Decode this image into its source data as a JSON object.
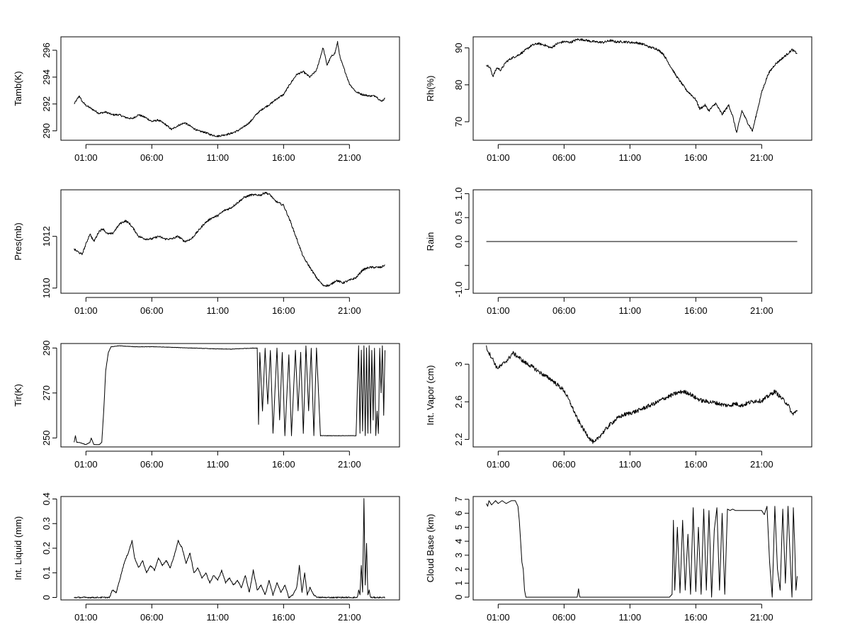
{
  "x_ticks": [
    "01:00",
    "06:00",
    "11:00",
    "16:00",
    "21:00"
  ],
  "chart_data": [
    {
      "type": "line",
      "ylabel": "Tamb(K)",
      "y_ticks": [
        290,
        292,
        294,
        296
      ],
      "ylim": [
        289.3,
        297.0
      ],
      "x_range_hours": [
        0.1,
        23.7
      ],
      "series": [
        {
          "x": [
            0.1,
            0.3,
            0.5,
            0.7,
            1.0,
            1.5,
            2.0,
            2.5,
            3.0,
            3.5,
            4.0,
            4.5,
            5.0,
            5.5,
            6.0,
            6.5,
            7.0,
            7.5,
            8.0,
            8.5,
            9.0,
            9.5,
            10.0,
            10.5,
            11.0,
            11.5,
            12.0,
            12.5,
            13.0,
            13.5,
            14.0,
            14.5,
            15.0,
            15.5,
            16.0,
            16.5,
            17.0,
            17.5,
            18.0,
            18.5,
            19.0,
            19.3,
            19.6,
            19.9,
            20.1,
            20.3,
            20.6,
            21.0,
            21.5,
            22.0,
            22.5,
            23.0,
            23.4,
            23.7
          ],
          "y": [
            292.0,
            292.3,
            292.6,
            292.2,
            291.9,
            291.6,
            291.3,
            291.4,
            291.2,
            291.2,
            291.0,
            290.9,
            291.2,
            291.0,
            290.7,
            290.8,
            290.5,
            290.1,
            290.4,
            290.6,
            290.3,
            290.0,
            289.9,
            289.7,
            289.6,
            289.7,
            289.8,
            290.0,
            290.3,
            290.7,
            291.3,
            291.7,
            292.0,
            292.4,
            292.7,
            293.5,
            294.2,
            294.4,
            294.0,
            294.5,
            296.2,
            294.9,
            295.5,
            295.8,
            296.6,
            295.4,
            294.6,
            293.5,
            292.9,
            292.7,
            292.6,
            292.6,
            292.2,
            292.4
          ]
        }
      ]
    },
    {
      "type": "line",
      "ylabel": "Rh(%)",
      "y_ticks": [
        70,
        80,
        90
      ],
      "ylim": [
        65.0,
        93.0
      ],
      "x_range_hours": [
        0.1,
        23.7
      ],
      "series": [
        {
          "x": [
            0.1,
            0.4,
            0.6,
            0.9,
            1.2,
            1.6,
            2.0,
            2.5,
            3.0,
            3.5,
            4.0,
            4.5,
            5.0,
            5.5,
            6.0,
            6.5,
            7.0,
            7.5,
            8.0,
            8.5,
            9.0,
            9.5,
            10.0,
            10.5,
            11.0,
            11.5,
            12.0,
            12.5,
            13.0,
            13.5,
            14.0,
            14.5,
            15.0,
            15.3,
            15.6,
            16.0,
            16.3,
            16.7,
            17.0,
            17.5,
            18.0,
            18.5,
            18.8,
            19.1,
            19.5,
            19.9,
            20.3,
            20.6,
            21.0,
            21.5,
            22.0,
            22.5,
            23.0,
            23.3,
            23.7
          ],
          "y": [
            85.5,
            84.5,
            82.3,
            84.6,
            84.0,
            86.2,
            87.2,
            88.0,
            89.2,
            90.6,
            91.2,
            90.8,
            90.0,
            91.2,
            91.7,
            91.5,
            92.3,
            92.2,
            91.8,
            91.6,
            91.5,
            92.0,
            91.6,
            91.7,
            91.5,
            91.4,
            91.0,
            90.2,
            89.8,
            88.5,
            85.5,
            82.5,
            80.0,
            78.5,
            77.5,
            76.0,
            73.5,
            74.5,
            73.0,
            75.0,
            72.0,
            74.5,
            71.5,
            67.0,
            73.0,
            70.0,
            67.5,
            72.0,
            78.0,
            83.0,
            85.5,
            87.0,
            88.5,
            89.5,
            88.5
          ]
        }
      ]
    },
    {
      "type": "line",
      "ylabel": "Pres(mb)",
      "y_ticks": [
        1010,
        1012
      ],
      "ylim": [
        1009.8,
        1013.8
      ],
      "x_range_hours": [
        0.1,
        23.7
      ],
      "series": [
        {
          "x": [
            0.1,
            0.4,
            0.7,
            1.0,
            1.3,
            1.6,
            2.0,
            2.3,
            2.6,
            3.0,
            3.3,
            3.6,
            4.0,
            4.3,
            4.6,
            5.0,
            5.5,
            6.0,
            6.5,
            7.0,
            7.5,
            8.0,
            8.5,
            9.0,
            9.5,
            10.0,
            10.5,
            11.0,
            11.5,
            12.0,
            12.5,
            13.0,
            13.5,
            14.0,
            14.3,
            14.6,
            15.0,
            15.3,
            15.6,
            16.0,
            16.5,
            17.0,
            17.5,
            18.0,
            18.5,
            19.0,
            19.5,
            20.0,
            20.5,
            21.0,
            21.5,
            22.0,
            22.5,
            23.0,
            23.4,
            23.7
          ],
          "y": [
            1011.5,
            1011.4,
            1011.3,
            1011.7,
            1012.1,
            1011.8,
            1012.2,
            1012.3,
            1012.1,
            1012.1,
            1012.3,
            1012.5,
            1012.6,
            1012.5,
            1012.3,
            1012.0,
            1011.9,
            1011.9,
            1012.0,
            1011.9,
            1011.9,
            1012.0,
            1011.8,
            1011.9,
            1012.2,
            1012.5,
            1012.7,
            1012.8,
            1013.0,
            1013.1,
            1013.3,
            1013.5,
            1013.6,
            1013.6,
            1013.6,
            1013.7,
            1013.6,
            1013.4,
            1013.3,
            1013.2,
            1012.6,
            1011.9,
            1011.2,
            1010.8,
            1010.4,
            1010.1,
            1010.1,
            1010.3,
            1010.2,
            1010.3,
            1010.4,
            1010.7,
            1010.8,
            1010.8,
            1010.8,
            1010.9
          ]
        }
      ]
    },
    {
      "type": "line",
      "ylabel": "Rain",
      "y_ticks": [
        -1.0,
        -0.5,
        0.0,
        0.5,
        1.0
      ],
      "y_tick_labels": [
        "-1.0",
        "",
        "0.0",
        "0.5",
        "1.0"
      ],
      "ylim": [
        -1.08,
        1.08
      ],
      "x_range_hours": [
        0.1,
        23.7
      ],
      "series": [
        {
          "x": [
            0.1,
            23.7
          ],
          "y": [
            0.0,
            0.0
          ]
        }
      ]
    },
    {
      "type": "line",
      "ylabel": "Tir(K)",
      "y_ticks": [
        250,
        270,
        290
      ],
      "ylim": [
        246.0,
        292.0
      ],
      "x_range_hours": [
        0.1,
        23.7
      ],
      "series": [
        {
          "x": [
            0.1,
            0.2,
            0.3,
            0.5,
            1.0,
            1.3,
            1.4,
            1.6,
            2.0,
            2.2,
            2.35,
            2.5,
            2.7,
            2.9,
            3.2,
            3.5,
            4.0,
            5.0,
            6.0,
            7.0,
            8.0,
            9.0,
            10.0,
            11.0,
            12.0,
            13.0,
            14.0,
            14.1,
            14.2,
            14.4,
            14.6,
            14.8,
            15.0,
            15.2,
            15.5,
            15.7,
            15.9,
            16.1,
            16.4,
            16.6,
            16.9,
            17.1,
            17.3,
            17.5,
            17.7,
            17.9,
            18.1,
            18.3,
            18.5,
            18.8,
            19.0,
            19.5,
            20.0,
            20.5,
            21.0,
            21.5,
            21.7,
            21.8,
            21.9,
            22.0,
            22.1,
            22.2,
            22.3,
            22.4,
            22.5,
            22.6,
            22.7,
            22.8,
            22.9,
            23.0,
            23.1,
            23.2,
            23.3,
            23.4,
            23.5,
            23.6,
            23.7
          ],
          "y": [
            248,
            251,
            248,
            248,
            247,
            248,
            250,
            247,
            247,
            248,
            262,
            280,
            288,
            290.5,
            290.8,
            291,
            290.8,
            290.5,
            290.6,
            290.4,
            290.2,
            290,
            289.8,
            289.6,
            289.5,
            289.8,
            290,
            256,
            288,
            262,
            290,
            265,
            289,
            252,
            290,
            258,
            288,
            251,
            287,
            251,
            289,
            262,
            288,
            252,
            291,
            262,
            290,
            251,
            290,
            251,
            251,
            251,
            251,
            251,
            251,
            251,
            291,
            252,
            289,
            253,
            291,
            251,
            290,
            252,
            291,
            252,
            289,
            258,
            290,
            251,
            262,
            252,
            290,
            270,
            291,
            260,
            289
          ]
        }
      ]
    },
    {
      "type": "line",
      "ylabel": "Int. Vapor (cm)",
      "y_ticks": [
        2.2,
        2.6,
        3.0
      ],
      "ylim": [
        2.12,
        3.22
      ],
      "x_range_hours": [
        0.1,
        23.7
      ],
      "series": [
        {
          "x": [
            0.1,
            0.3,
            0.6,
            0.9,
            1.2,
            1.5,
            1.8,
            2.1,
            2.5,
            3.0,
            3.5,
            4.0,
            4.5,
            5.0,
            5.5,
            6.0,
            6.5,
            7.0,
            7.5,
            8.0,
            8.3,
            8.6,
            9.0,
            9.5,
            10.0,
            10.5,
            11.0,
            11.5,
            12.0,
            12.5,
            13.0,
            13.5,
            14.0,
            14.5,
            15.0,
            15.5,
            16.0,
            16.5,
            17.0,
            17.5,
            18.0,
            18.5,
            19.0,
            19.5,
            20.0,
            20.5,
            21.0,
            21.5,
            22.0,
            22.5,
            23.0,
            23.3,
            23.7
          ],
          "y": [
            3.18,
            3.12,
            3.05,
            2.96,
            2.98,
            3.02,
            3.06,
            3.12,
            3.08,
            3.02,
            2.98,
            2.93,
            2.88,
            2.84,
            2.78,
            2.72,
            2.58,
            2.42,
            2.3,
            2.2,
            2.16,
            2.22,
            2.28,
            2.36,
            2.42,
            2.46,
            2.48,
            2.5,
            2.53,
            2.56,
            2.59,
            2.63,
            2.66,
            2.69,
            2.71,
            2.69,
            2.64,
            2.61,
            2.6,
            2.59,
            2.57,
            2.56,
            2.58,
            2.56,
            2.59,
            2.61,
            2.61,
            2.66,
            2.71,
            2.64,
            2.57,
            2.47,
            2.5
          ]
        }
      ]
    },
    {
      "type": "line",
      "ylabel": "Int. Liquid (mm)",
      "y_ticks": [
        0.0,
        0.1,
        0.2,
        0.3,
        0.4
      ],
      "ylim": [
        -0.01,
        0.41
      ],
      "x_range_hours": [
        0.1,
        23.7
      ],
      "series": [
        {
          "x": [
            0.1,
            1.0,
            2.0,
            2.8,
            3.0,
            3.3,
            3.6,
            3.9,
            4.2,
            4.5,
            4.7,
            5.0,
            5.3,
            5.6,
            5.9,
            6.2,
            6.5,
            6.8,
            7.1,
            7.4,
            7.7,
            8.0,
            8.3,
            8.6,
            8.9,
            9.2,
            9.5,
            9.8,
            10.1,
            10.4,
            10.7,
            11.0,
            11.3,
            11.6,
            11.9,
            12.2,
            12.5,
            12.8,
            13.1,
            13.4,
            13.7,
            14.0,
            14.3,
            14.6,
            14.9,
            15.2,
            15.5,
            15.8,
            16.1,
            16.4,
            16.7,
            17.0,
            17.2,
            17.4,
            17.6,
            17.8,
            18.0,
            18.3,
            18.6,
            19.0,
            20.0,
            21.0,
            21.6,
            21.7,
            21.8,
            21.9,
            22.0,
            22.1,
            22.2,
            22.3,
            22.4,
            22.5,
            22.6,
            22.7,
            22.8,
            23.0,
            23.3,
            23.7
          ],
          "y": [
            0,
            0,
            0,
            0,
            0.03,
            0.02,
            0.08,
            0.14,
            0.18,
            0.23,
            0.16,
            0.12,
            0.15,
            0.1,
            0.13,
            0.11,
            0.16,
            0.13,
            0.15,
            0.12,
            0.17,
            0.23,
            0.2,
            0.14,
            0.18,
            0.1,
            0.12,
            0.08,
            0.1,
            0.06,
            0.09,
            0.07,
            0.11,
            0.06,
            0.08,
            0.05,
            0.07,
            0.04,
            0.09,
            0.02,
            0.11,
            0.03,
            0.05,
            0.01,
            0.07,
            0.01,
            0.06,
            0.02,
            0.05,
            0,
            0.01,
            0.04,
            0.13,
            0.02,
            0.1,
            0.01,
            0.04,
            0.01,
            0,
            0,
            0,
            0,
            0,
            0.03,
            0.01,
            0.13,
            0.02,
            0.4,
            0.05,
            0.22,
            0.01,
            0.03,
            0,
            0,
            0,
            0,
            0,
            0
          ]
        }
      ]
    },
    {
      "type": "line",
      "ylabel": "Cloud Base (km)",
      "y_ticks": [
        0,
        1,
        2,
        3,
        4,
        5,
        6,
        7
      ],
      "ylim": [
        -0.2,
        7.2
      ],
      "x_range_hours": [
        0.1,
        23.7
      ],
      "series": [
        {
          "x": [
            0.1,
            0.2,
            0.3,
            0.5,
            0.8,
            1.0,
            1.3,
            1.6,
            2.0,
            2.3,
            2.5,
            2.6,
            2.7,
            2.8,
            2.9,
            3.0,
            3.1,
            3.2,
            4.0,
            5.0,
            6.0,
            7.0,
            7.1,
            7.15,
            7.2,
            7.3,
            8.0,
            9.0,
            10.0,
            11.0,
            12.0,
            13.0,
            14.0,
            14.2,
            14.3,
            14.4,
            14.6,
            14.8,
            15.0,
            15.2,
            15.4,
            15.6,
            15.8,
            16.0,
            16.2,
            16.4,
            16.6,
            16.8,
            17.0,
            17.2,
            17.4,
            17.6,
            17.8,
            18.0,
            18.2,
            18.4,
            18.6,
            18.8,
            19.0,
            19.5,
            20.0,
            20.5,
            21.0,
            21.2,
            21.4,
            21.6,
            21.8,
            22.0,
            22.2,
            22.4,
            22.6,
            22.8,
            23.0,
            23.2,
            23.3,
            23.4,
            23.5,
            23.6,
            23.7
          ],
          "y": [
            6.7,
            6.5,
            6.9,
            6.6,
            6.9,
            6.7,
            6.9,
            6.7,
            6.9,
            6.9,
            6.5,
            5.5,
            4.0,
            2.5,
            2.0,
            0.5,
            0,
            0,
            0,
            0,
            0,
            0,
            0.6,
            0.2,
            0,
            0,
            0,
            0,
            0,
            0,
            0,
            0,
            0,
            0.2,
            5.5,
            0.5,
            5.0,
            0.3,
            5.5,
            0.5,
            4.5,
            0.2,
            6.4,
            0.4,
            5.0,
            0.2,
            6.3,
            0.5,
            6.2,
            0,
            4.8,
            6.4,
            0.5,
            6.0,
            0.2,
            6.3,
            6.2,
            6.3,
            6.2,
            6.2,
            6.2,
            6.2,
            6.2,
            5.9,
            6.5,
            2.5,
            0,
            6.5,
            2.0,
            0.5,
            6.3,
            1.0,
            6.5,
            2.0,
            0,
            6.4,
            4.0,
            0.5,
            1.5
          ]
        }
      ]
    }
  ]
}
